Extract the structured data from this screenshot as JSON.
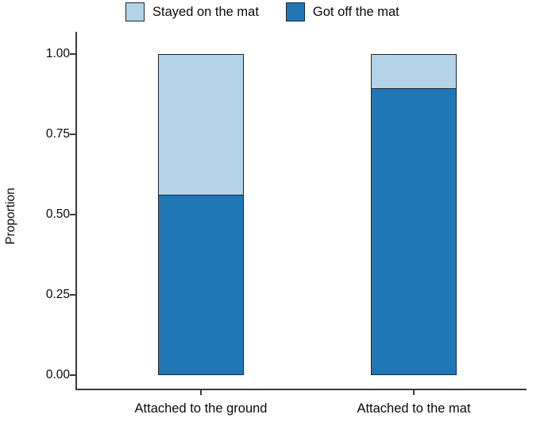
{
  "chart_data": {
    "type": "bar",
    "variant": "stacked",
    "title": "",
    "ylabel": "Proportion",
    "xlabel": "",
    "ylim": [
      0,
      1
    ],
    "yticks": [
      {
        "value": 0.0,
        "label": "0.00"
      },
      {
        "value": 0.25,
        "label": "0.25"
      },
      {
        "value": 0.5,
        "label": "0.50"
      },
      {
        "value": 0.75,
        "label": "0.75"
      },
      {
        "value": 1.0,
        "label": "1.00"
      }
    ],
    "categories": [
      "Attached to the ground",
      "Attached to the mat"
    ],
    "series": [
      {
        "name": "Got off the mat",
        "color": "#2077b6",
        "values": [
          0.56,
          0.89
        ]
      },
      {
        "name": "Stayed on the mat",
        "color": "#b3d3e6",
        "values": [
          0.44,
          0.11
        ]
      }
    ],
    "legend": [
      {
        "label": "Stayed on the mat",
        "color": "#b3d3e6"
      },
      {
        "label": "Got off the mat",
        "color": "#2077b6"
      }
    ],
    "legend_position": "top",
    "grid": "off"
  }
}
